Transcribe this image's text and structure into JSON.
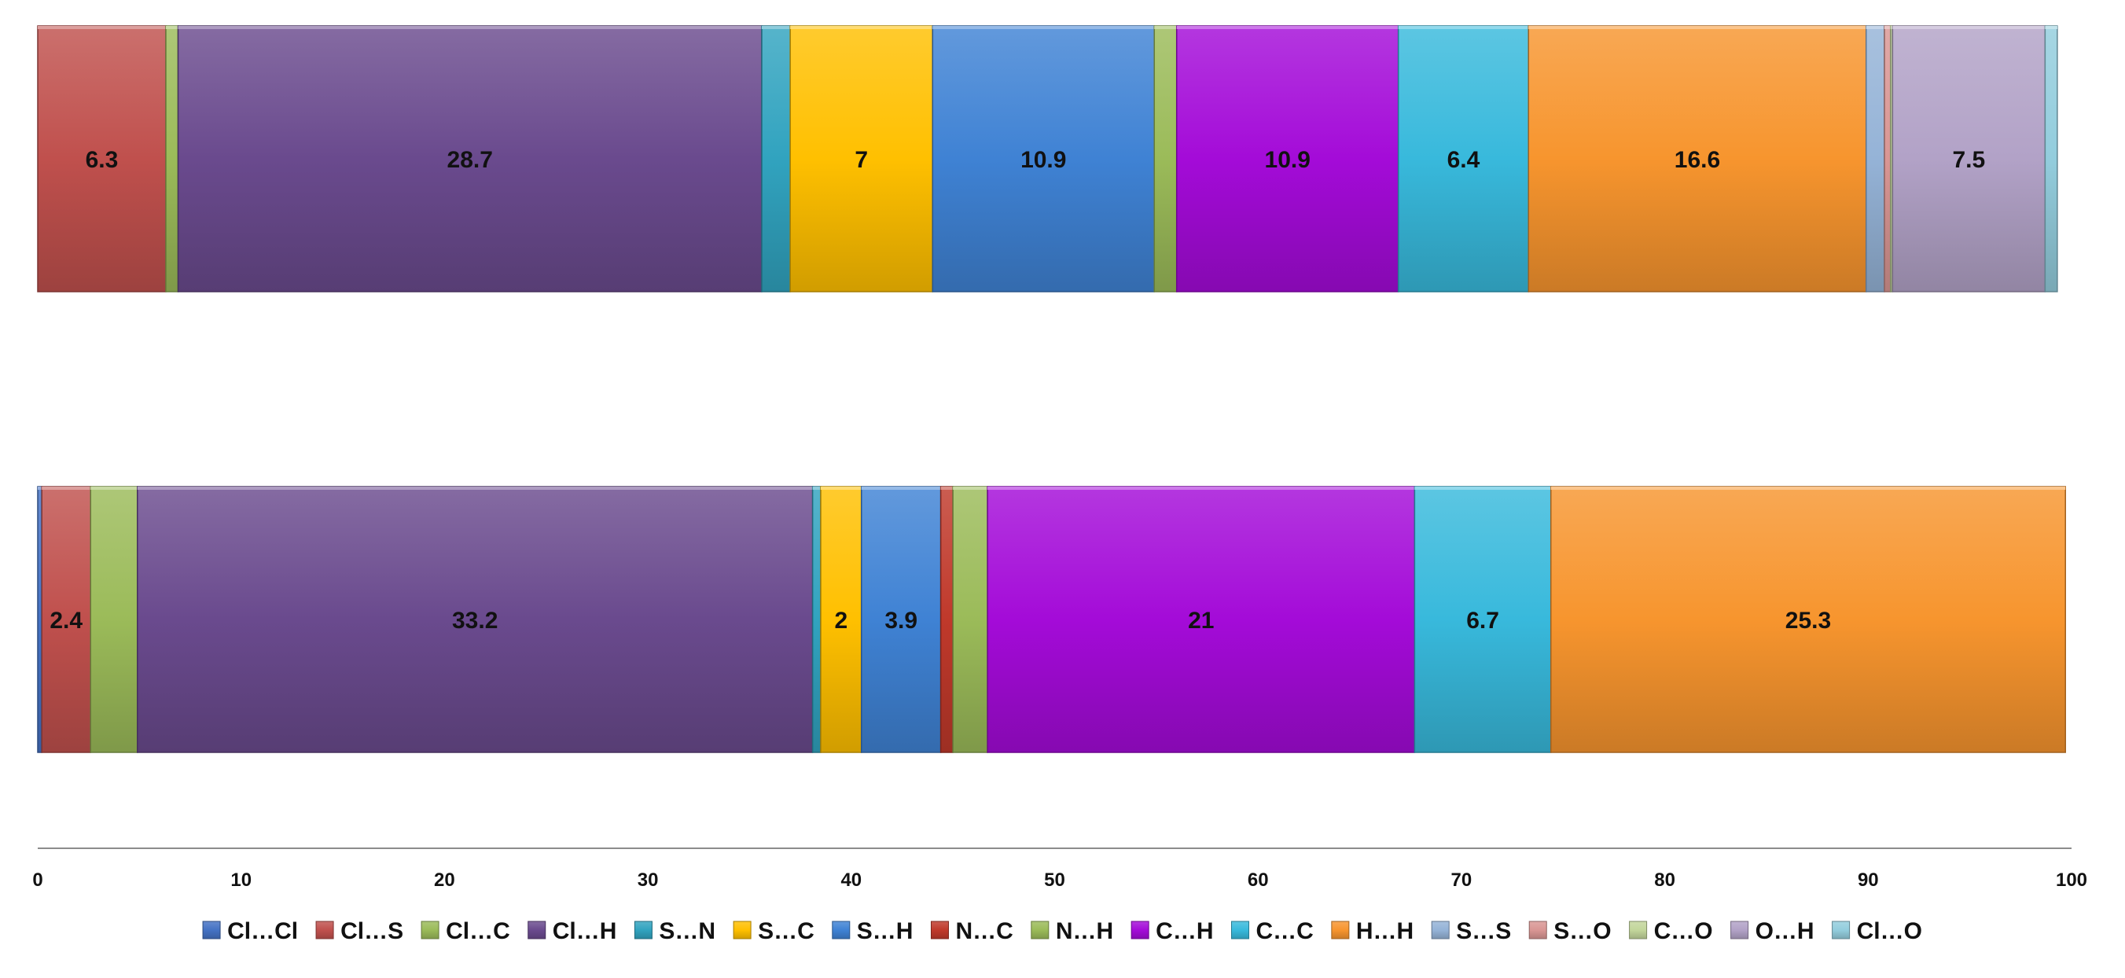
{
  "chart_data": {
    "type": "bar",
    "orientation": "horizontal",
    "stacked": true,
    "xlim": [
      0,
      100
    ],
    "x_ticks": [
      0,
      10,
      20,
      30,
      40,
      50,
      60,
      70,
      80,
      90,
      100
    ],
    "grid": false,
    "legend_position": "bottom",
    "series": [
      {
        "name": "Cl…Cl",
        "color": "#4472C4",
        "values": [
          0.0,
          0.2
        ]
      },
      {
        "name": "Cl…S",
        "color": "#C0504D",
        "values": [
          6.3,
          2.4
        ]
      },
      {
        "name": "Cl…C",
        "color": "#9BBB59",
        "values": [
          0.6,
          2.3
        ]
      },
      {
        "name": "Cl…H",
        "color": "#6A4A8E",
        "values": [
          28.7,
          33.2
        ]
      },
      {
        "name": "S…N",
        "color": "#31A3BF",
        "values": [
          1.4,
          0.4
        ]
      },
      {
        "name": "S…C",
        "color": "#FFC000",
        "values": [
          7,
          2
        ]
      },
      {
        "name": "S…H",
        "color": "#3F82D4",
        "values": [
          10.9,
          3.9
        ]
      },
      {
        "name": "N…C",
        "color": "#C0392B",
        "values": [
          0.0,
          0.6
        ]
      },
      {
        "name": "N…H",
        "color": "#9BBB59",
        "values": [
          1.1,
          1.7
        ]
      },
      {
        "name": "C…H",
        "color": "#A40BD8",
        "values": [
          10.9,
          21
        ]
      },
      {
        "name": "C…C",
        "color": "#38B9DC",
        "values": [
          6.4,
          6.7
        ]
      },
      {
        "name": "H…H",
        "color": "#F7952E",
        "values": [
          16.6,
          25.3
        ]
      },
      {
        "name": "S…S",
        "color": "#95B3D7",
        "values": [
          0.9,
          0.0
        ]
      },
      {
        "name": "S…O",
        "color": "#D99694",
        "values": [
          0.3,
          0.0
        ]
      },
      {
        "name": "C…O",
        "color": "#C3D69B",
        "values": [
          0.1,
          0.0
        ]
      },
      {
        "name": "O…H",
        "color": "#B2A2C7",
        "values": [
          7.5,
          0.0
        ]
      },
      {
        "name": "Cl…O",
        "color": "#93CDDD",
        "values": [
          0.6,
          0.0
        ]
      }
    ],
    "data_labels": [
      {
        "bar": 0,
        "series": 1,
        "text": "6.3"
      },
      {
        "bar": 0,
        "series": 3,
        "text": "28.7"
      },
      {
        "bar": 0,
        "series": 5,
        "text": "7"
      },
      {
        "bar": 0,
        "series": 6,
        "text": "10.9"
      },
      {
        "bar": 0,
        "series": 9,
        "text": "10.9"
      },
      {
        "bar": 0,
        "series": 10,
        "text": "6.4"
      },
      {
        "bar": 0,
        "series": 11,
        "text": "16.6"
      },
      {
        "bar": 0,
        "series": 15,
        "text": "7.5"
      },
      {
        "bar": 1,
        "series": 1,
        "text": "2.4"
      },
      {
        "bar": 1,
        "series": 3,
        "text": "33.2"
      },
      {
        "bar": 1,
        "series": 5,
        "text": "2"
      },
      {
        "bar": 1,
        "series": 6,
        "text": "3.9"
      },
      {
        "bar": 1,
        "series": 9,
        "text": "21"
      },
      {
        "bar": 1,
        "series": 10,
        "text": "6.7"
      },
      {
        "bar": 1,
        "series": 11,
        "text": "25.3"
      }
    ]
  }
}
